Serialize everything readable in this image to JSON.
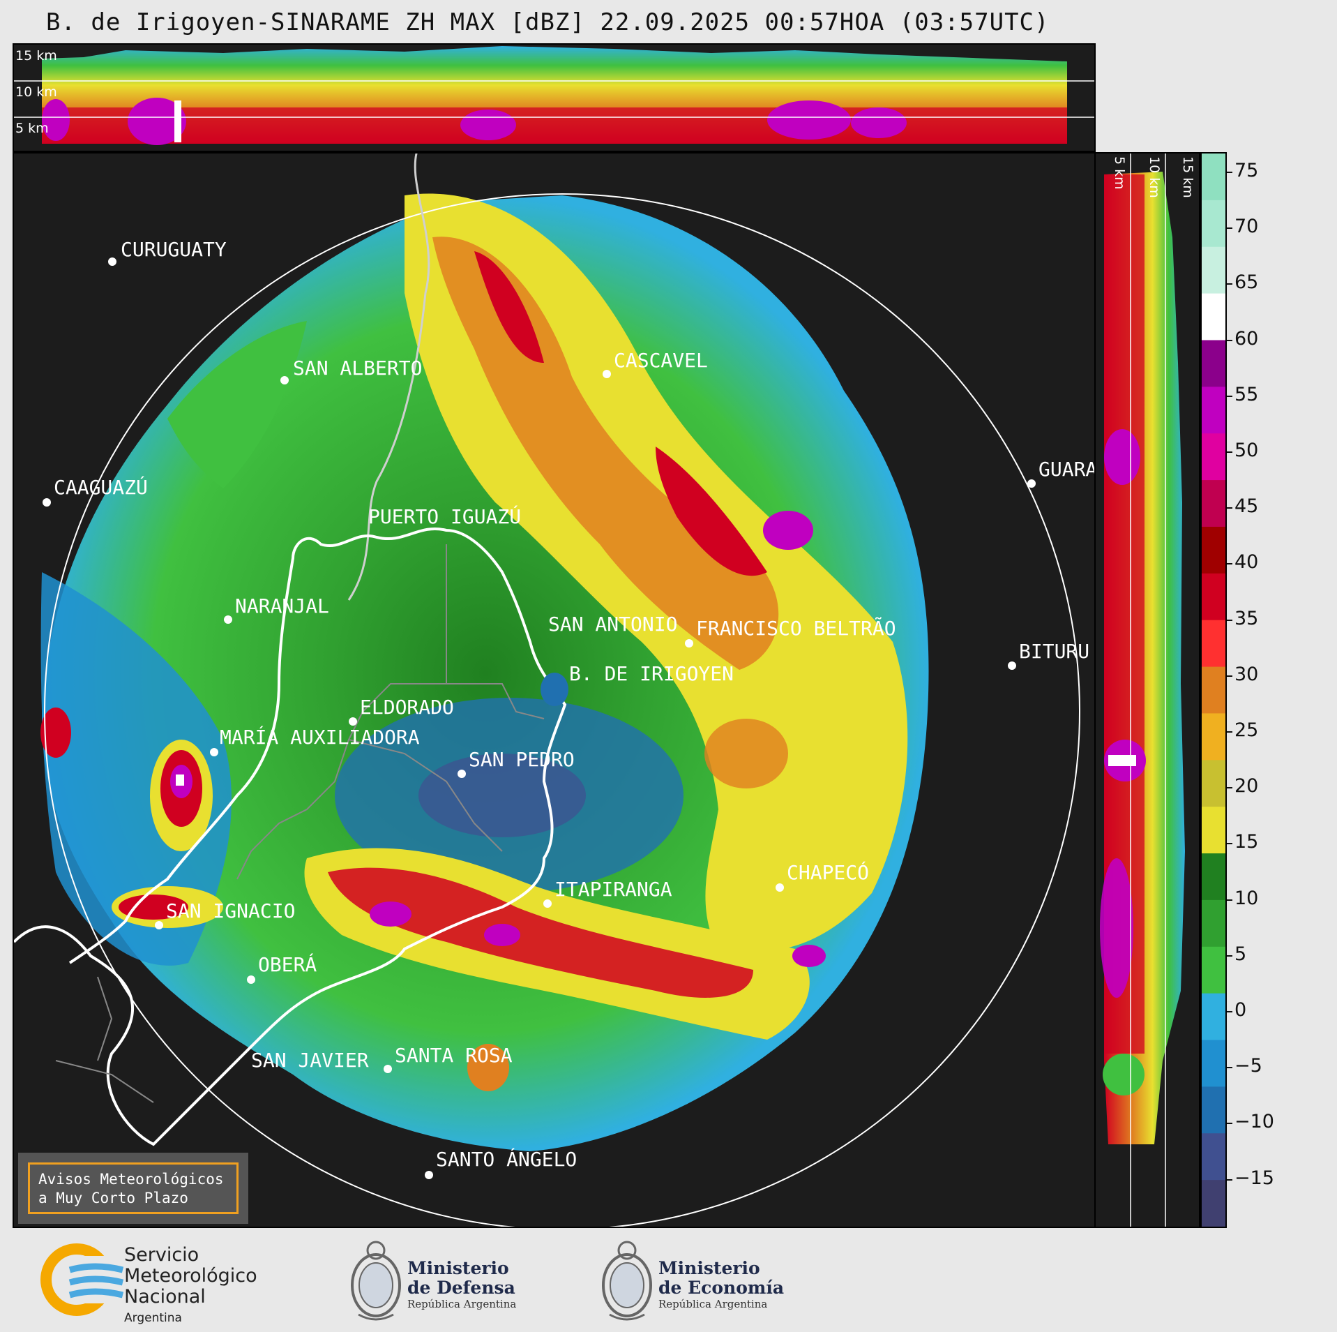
{
  "title": "B. de Irigoyen-SINARAME ZH MAX [dBZ] 22.09.2025 00:57HOA (03:57UTC)",
  "top_panel": {
    "km_labels": [
      "15 km",
      "10 km",
      "5 km"
    ]
  },
  "right_panel": {
    "km_labels": [
      "5 km",
      "10 km",
      "15 km"
    ]
  },
  "colorbar": {
    "ticks": [
      "75",
      "70",
      "65",
      "60",
      "55",
      "50",
      "45",
      "40",
      "35",
      "30",
      "25",
      "20",
      "15",
      "10",
      "5",
      "0",
      "−5",
      "−10",
      "−15"
    ],
    "segments": [
      "#8fe0c0",
      "#a8e8d0",
      "#c8f0e0",
      "#ffffff",
      "#8b008b",
      "#c000c0",
      "#e000a0",
      "#c00050",
      "#a00000",
      "#d00020",
      "#ff3030",
      "#e08020",
      "#f0b020",
      "#c8c030",
      "#e8e030",
      "#208020",
      "#30a030",
      "#40c040",
      "#30b0e0",
      "#2090d0",
      "#2070b0",
      "#405090",
      "#404070"
    ],
    "colors": {
      "high": "#8fe0c0",
      "purple": "#a000a0",
      "red": "#d00020",
      "yellow": "#e8e030",
      "green": "#40c040",
      "blue": "#2090d0",
      "low": "#404070"
    }
  },
  "cities": [
    {
      "name": "CURUGUATY"
    },
    {
      "name": "SAN ALBERTO"
    },
    {
      "name": "CASCAVEL"
    },
    {
      "name": "CAAGUAZÚ"
    },
    {
      "name": "GUARA"
    },
    {
      "name": "PUERTO IGUAZÚ"
    },
    {
      "name": "NARANJAL"
    },
    {
      "name": "SAN ANTONIO"
    },
    {
      "name": "FRANCISCO BELTRÃO"
    },
    {
      "name": "BITURU"
    },
    {
      "name": "B. DE IRIGOYEN"
    },
    {
      "name": "ELDORADO"
    },
    {
      "name": "MARÍA AUXILIADORA"
    },
    {
      "name": "SAN PEDRO"
    },
    {
      "name": "CHAPECÓ"
    },
    {
      "name": "ITAPIRANGA"
    },
    {
      "name": "SAN IGNACIO"
    },
    {
      "name": "OBERÁ"
    },
    {
      "name": "SAN JAVIER"
    },
    {
      "name": "SANTA ROSA"
    },
    {
      "name": "SANTO ÁNGELO"
    }
  ],
  "warning_box": {
    "line1": "Avisos Meteorológicos",
    "line2": "a Muy Corto Plazo"
  },
  "footer": {
    "smn": {
      "line1": "Servicio",
      "line2": "Meteorológico",
      "line3": "Nacional",
      "line4": "Argentina"
    },
    "defensa": {
      "line1": "Ministerio",
      "line2": "de Defensa",
      "sub": "República Argentina"
    },
    "economia": {
      "line1": "Ministerio",
      "line2": "de Economía",
      "sub": "República Argentina"
    }
  }
}
